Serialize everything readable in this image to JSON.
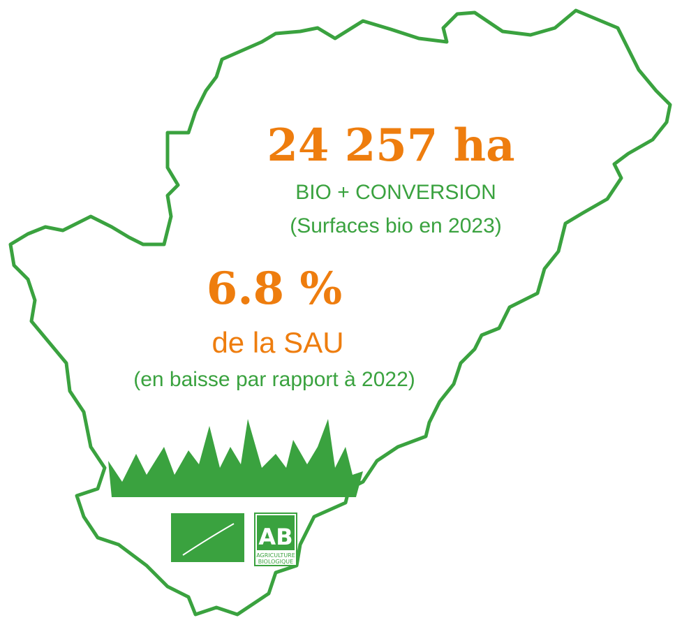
{
  "stat1": {
    "value": "24 257 ha",
    "label": "BIO + CONVERSION",
    "note": "(Surfaces bio en 2023)"
  },
  "stat2": {
    "value": "6.8 %",
    "label": "de la SAU",
    "note": "(en baisse par rapport à 2022)"
  },
  "logo": {
    "mark": "AB",
    "line1": "AGRICULTURE",
    "line2": "BIOLOGIQUE"
  }
}
